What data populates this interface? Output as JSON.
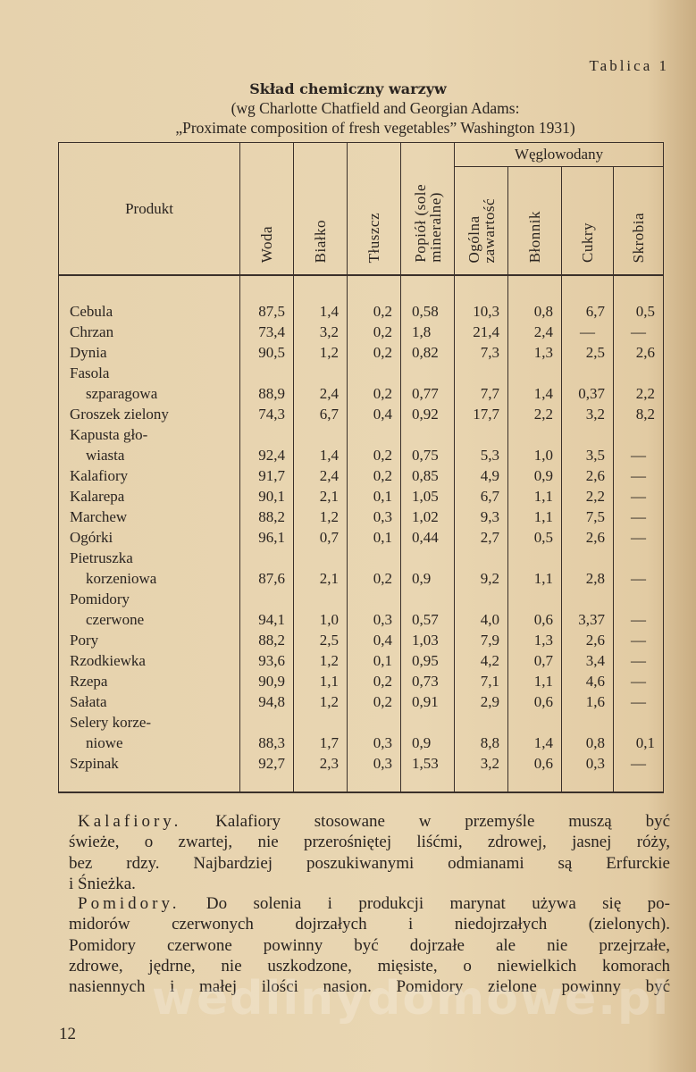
{
  "table_label": "Tablica 1",
  "title": "Skład chemiczny warzyw",
  "subtitle_lines": [
    "(wg Charlotte Chatfield and Georgian Adams:",
    "„Proximate composition of fresh vegetables” Washington 1931)"
  ],
  "table": {
    "headers": {
      "produkt": "Produkt",
      "woda": "Woda",
      "bialko": "Białko",
      "tluszcz": "Tłuszcz",
      "popiol_1": "Popiół (sole",
      "popiol_2": "mineralne)",
      "weglowodany": "Węglowodany",
      "ogolna_1": "Ogólna",
      "ogolna_2": "zawartość",
      "blonnik": "Błonnik",
      "cukry": "Cukry",
      "skrobia": "Skrobia"
    },
    "rows": [
      {
        "name": [
          "Cebula"
        ],
        "values": [
          "87,5",
          "1,4",
          "0,2",
          "0,58",
          "10,3",
          "0,8",
          "6,7",
          "0,5"
        ]
      },
      {
        "name": [
          "Chrzan"
        ],
        "values": [
          "73,4",
          "3,2",
          "0,2",
          "1,8",
          "21,4",
          "2,4",
          "—",
          "—"
        ]
      },
      {
        "name": [
          "Dynia"
        ],
        "values": [
          "90,5",
          "1,2",
          "0,2",
          "0,82",
          "7,3",
          "1,3",
          "2,5",
          "2,6"
        ]
      },
      {
        "name": [
          "Fasola",
          "szparagowa"
        ],
        "values": [
          "88,9",
          "2,4",
          "0,2",
          "0,77",
          "7,7",
          "1,4",
          "0,37",
          "2,2"
        ]
      },
      {
        "name": [
          "Groszek zielony"
        ],
        "values": [
          "74,3",
          "6,7",
          "0,4",
          "0,92",
          "17,7",
          "2,2",
          "3,2",
          "8,2"
        ]
      },
      {
        "name": [
          "Kapusta gło-",
          "wiasta"
        ],
        "values": [
          "92,4",
          "1,4",
          "0,2",
          "0,75",
          "5,3",
          "1,0",
          "3,5",
          "—"
        ]
      },
      {
        "name": [
          "Kalafiory"
        ],
        "values": [
          "91,7",
          "2,4",
          "0,2",
          "0,85",
          "4,9",
          "0,9",
          "2,6",
          "—"
        ]
      },
      {
        "name": [
          "Kalarepa"
        ],
        "values": [
          "90,1",
          "2,1",
          "0,1",
          "1,05",
          "6,7",
          "1,1",
          "2,2",
          "—"
        ]
      },
      {
        "name": [
          "Marchew"
        ],
        "values": [
          "88,2",
          "1,2",
          "0,3",
          "1,02",
          "9,3",
          "1,1",
          "7,5",
          "—"
        ]
      },
      {
        "name": [
          "Ogórki"
        ],
        "values": [
          "96,1",
          "0,7",
          "0,1",
          "0,44",
          "2,7",
          "0,5",
          "2,6",
          "—"
        ]
      },
      {
        "name": [
          "Pietruszka",
          "korzeniowa"
        ],
        "values": [
          "87,6",
          "2,1",
          "0,2",
          "0,9",
          "9,2",
          "1,1",
          "2,8",
          "—"
        ]
      },
      {
        "name": [
          "Pomidory",
          "czerwone"
        ],
        "values": [
          "94,1",
          "1,0",
          "0,3",
          "0,57",
          "4,0",
          "0,6",
          "3,37",
          "—"
        ]
      },
      {
        "name": [
          "Pory"
        ],
        "values": [
          "88,2",
          "2,5",
          "0,4",
          "1,03",
          "7,9",
          "1,3",
          "2,6",
          "—"
        ]
      },
      {
        "name": [
          "Rzodkiewka"
        ],
        "values": [
          "93,6",
          "1,2",
          "0,1",
          "0,95",
          "4,2",
          "0,7",
          "3,4",
          "—"
        ]
      },
      {
        "name": [
          "Rzepa"
        ],
        "values": [
          "90,9",
          "1,1",
          "0,2",
          "0,73",
          "7,1",
          "1,1",
          "4,6",
          "—"
        ]
      },
      {
        "name": [
          "Sałata"
        ],
        "values": [
          "94,8",
          "1,2",
          "0,2",
          "0,91",
          "2,9",
          "0,6",
          "1,6",
          "—"
        ]
      },
      {
        "name": [
          "Selery korze-",
          "niowe"
        ],
        "values": [
          "88,3",
          "1,7",
          "0,3",
          "0,9",
          "8,8",
          "1,4",
          "0,8",
          "0,1"
        ]
      },
      {
        "name": [
          "Szpinak"
        ],
        "values": [
          "92,7",
          "2,3",
          "0,3",
          "1,53",
          "3,2",
          "0,6",
          "0,3",
          "—"
        ]
      }
    ]
  },
  "paragraphs": [
    {
      "lead": "Kalafiory.",
      "lines": [
        "Kalafiory stosowane w przemyśle muszą być",
        "świeże, o zwartej, nie przerośniętej liśćmi, zdrowej, jasnej róży,",
        "bez rdzy. Najbardziej poszukiwanymi odmianami są Erfurckie",
        "i Śnieżka."
      ]
    },
    {
      "lead": "Pomidory.",
      "lines": [
        "Do solenia i produkcji marynat używa się po-",
        "midorów czerwonych dojrzałych i niedojrzałych (zielonych).",
        "Pomidory czerwone powinny być dojrzałe ale nie przejrzałe,",
        "zdrowe, jędrne, nie uszkodzone, mięsiste, o niewielkich komorach",
        "nasiennych i małej ilości nasion. Pomidory zielone powinny być"
      ]
    }
  ],
  "page_number": "12",
  "watermark": "wedlinydomowe.pl"
}
